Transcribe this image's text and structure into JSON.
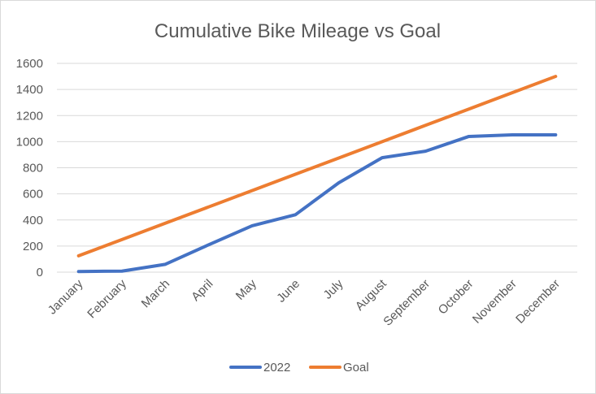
{
  "chart_data": {
    "type": "line",
    "title": "Cumulative Bike Mileage vs Goal",
    "xlabel": "",
    "ylabel": "",
    "categories": [
      "January",
      "February",
      "March",
      "April",
      "May",
      "June",
      "July",
      "August",
      "September",
      "October",
      "November",
      "December"
    ],
    "series": [
      {
        "name": "2022",
        "color": "#4472c4",
        "values": [
          5,
          8,
          60,
          210,
          355,
          440,
          685,
          877,
          927,
          1040,
          1052,
          1052
        ]
      },
      {
        "name": "Goal",
        "color": "#ed7d31",
        "values": [
          125,
          250,
          375,
          500,
          625,
          750,
          875,
          1000,
          1125,
          1250,
          1375,
          1500
        ]
      }
    ],
    "ylim": [
      0,
      1600
    ],
    "yticks": [
      0,
      200,
      400,
      600,
      800,
      1000,
      1200,
      1400,
      1600
    ],
    "grid": true,
    "legend_position": "bottom",
    "gridline_color": "#d9d9d9"
  }
}
